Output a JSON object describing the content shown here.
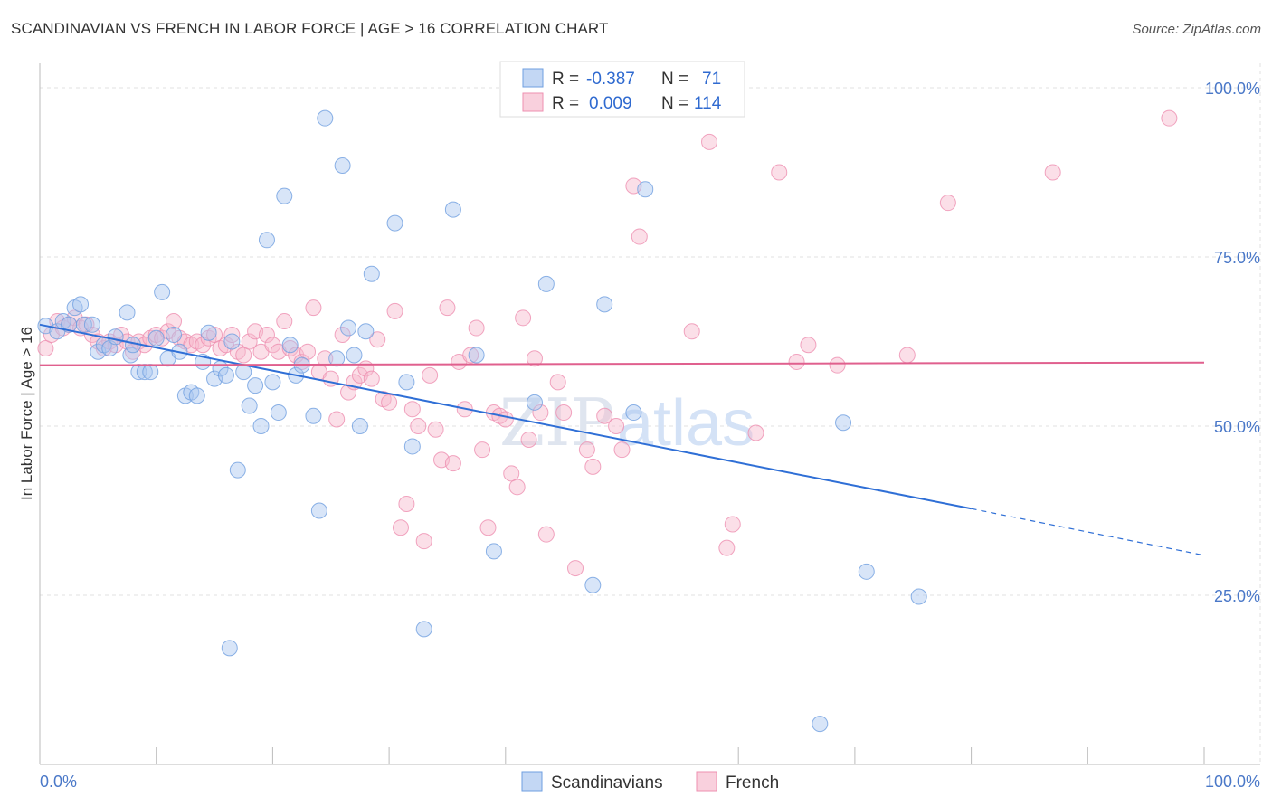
{
  "header": {
    "title": "SCANDINAVIAN VS FRENCH IN LABOR FORCE | AGE > 16 CORRELATION CHART",
    "source": "Source: ZipAtlas.com"
  },
  "watermark": {
    "left": "ZIP",
    "right": "atlas"
  },
  "legend_box": {
    "rows": [
      {
        "r_label": "R =",
        "r_value": "-0.387",
        "n_label": "N =",
        "n_value": "71",
        "color": "#a9c6f0"
      },
      {
        "r_label": "R =",
        "r_value": "0.009",
        "n_label": "N =",
        "n_value": "114",
        "color": "#f6b8cc"
      }
    ]
  },
  "chart_data": {
    "type": "scatter",
    "title": "SCANDINAVIAN VS FRENCH IN LABOR FORCE | AGE > 16 CORRELATION CHART",
    "xlabel": "",
    "ylabel": "In Labor Force | Age > 16",
    "xlim": [
      0,
      100
    ],
    "ylim": [
      0,
      100
    ],
    "x_tick_labels": [
      "0.0%",
      "100.0%"
    ],
    "y_ticks": [
      25,
      50,
      75,
      100
    ],
    "y_tick_labels": [
      "25.0%",
      "50.0%",
      "75.0%",
      "100.0%"
    ],
    "grid": true,
    "legend_position": "bottom",
    "series": [
      {
        "name": "Scandinavians",
        "color": "#a9c6f0",
        "stroke": "#6f9fe0",
        "line_color": "#2f6fd6",
        "trend": {
          "x_start": 0,
          "y_start": 65.0,
          "x_solid_end": 80,
          "y_solid_end": 37.8,
          "x_end": 100,
          "y_end": 30.9
        },
        "points": [
          [
            0.5,
            64.8
          ],
          [
            1.5,
            64.0
          ],
          [
            2.0,
            65.5
          ],
          [
            2.5,
            65.0
          ],
          [
            3.0,
            67.5
          ],
          [
            3.5,
            68.0
          ],
          [
            3.8,
            65.0
          ],
          [
            4.5,
            65.0
          ],
          [
            5.0,
            61.0
          ],
          [
            5.5,
            62.0
          ],
          [
            6.0,
            61.5
          ],
          [
            6.5,
            63.2
          ],
          [
            7.5,
            66.8
          ],
          [
            7.8,
            60.5
          ],
          [
            8.0,
            62.0
          ],
          [
            8.5,
            58.0
          ],
          [
            9.0,
            58.0
          ],
          [
            9.5,
            58.0
          ],
          [
            10.0,
            63.0
          ],
          [
            10.5,
            69.8
          ],
          [
            11.0,
            60.0
          ],
          [
            11.5,
            63.5
          ],
          [
            12.0,
            61.0
          ],
          [
            12.5,
            54.5
          ],
          [
            13.0,
            55.0
          ],
          [
            13.5,
            54.5
          ],
          [
            14.0,
            59.5
          ],
          [
            14.5,
            63.8
          ],
          [
            15.0,
            57.0
          ],
          [
            15.5,
            58.5
          ],
          [
            16.0,
            57.5
          ],
          [
            16.5,
            62.5
          ],
          [
            16.3,
            17.2
          ],
          [
            17.0,
            43.5
          ],
          [
            17.5,
            58.0
          ],
          [
            18.0,
            53.0
          ],
          [
            18.5,
            56.0
          ],
          [
            19.0,
            50.0
          ],
          [
            19.5,
            77.5
          ],
          [
            20.0,
            56.5
          ],
          [
            20.5,
            52.0
          ],
          [
            21.0,
            84.0
          ],
          [
            21.5,
            62.0
          ],
          [
            22.0,
            57.5
          ],
          [
            22.5,
            59.0
          ],
          [
            23.5,
            51.5
          ],
          [
            24.0,
            37.5
          ],
          [
            24.5,
            95.5
          ],
          [
            25.5,
            60.0
          ],
          [
            26.0,
            88.5
          ],
          [
            26.5,
            64.5
          ],
          [
            27.0,
            60.5
          ],
          [
            27.5,
            50.0
          ],
          [
            28.0,
            64.0
          ],
          [
            28.5,
            72.5
          ],
          [
            30.5,
            80.0
          ],
          [
            31.5,
            56.5
          ],
          [
            32.0,
            47.0
          ],
          [
            33.0,
            20.0
          ],
          [
            35.5,
            82.0
          ],
          [
            37.5,
            60.5
          ],
          [
            39.0,
            31.5
          ],
          [
            42.5,
            53.5
          ],
          [
            43.5,
            71.0
          ],
          [
            47.5,
            26.5
          ],
          [
            48.5,
            68.0
          ],
          [
            51.0,
            52.0
          ],
          [
            52.0,
            85.0
          ],
          [
            69.0,
            50.5
          ],
          [
            71.0,
            28.5
          ],
          [
            75.5,
            24.8
          ],
          [
            67.0,
            6.0
          ]
        ]
      },
      {
        "name": "French",
        "color": "#f6b8cc",
        "stroke": "#ee8fb0",
        "line_color": "#e0608e",
        "trend": {
          "x_start": 0,
          "y_start": 59.0,
          "x_end": 100,
          "y_end": 59.4
        },
        "points": [
          [
            0.5,
            61.5
          ],
          [
            1.0,
            63.5
          ],
          [
            1.5,
            65.5
          ],
          [
            2.0,
            64.5
          ],
          [
            2.5,
            65.0
          ],
          [
            3.0,
            66.0
          ],
          [
            3.5,
            64.5
          ],
          [
            4.0,
            65.0
          ],
          [
            4.5,
            63.5
          ],
          [
            5.0,
            62.5
          ],
          [
            5.5,
            61.5
          ],
          [
            6.0,
            62.5
          ],
          [
            6.5,
            62.0
          ],
          [
            7.0,
            63.5
          ],
          [
            7.5,
            62.5
          ],
          [
            8.0,
            61.0
          ],
          [
            8.5,
            62.5
          ],
          [
            9.0,
            62.0
          ],
          [
            9.5,
            63.0
          ],
          [
            10.0,
            63.5
          ],
          [
            10.5,
            63.0
          ],
          [
            11.0,
            64.0
          ],
          [
            11.5,
            65.5
          ],
          [
            12.0,
            63.0
          ],
          [
            12.5,
            62.5
          ],
          [
            13.0,
            62.0
          ],
          [
            13.5,
            62.5
          ],
          [
            14.0,
            62.0
          ],
          [
            14.5,
            63.0
          ],
          [
            15.0,
            63.5
          ],
          [
            15.5,
            61.5
          ],
          [
            16.0,
            62.0
          ],
          [
            16.5,
            63.5
          ],
          [
            17.0,
            61.0
          ],
          [
            17.5,
            60.5
          ],
          [
            18.0,
            62.5
          ],
          [
            18.5,
            64.0
          ],
          [
            19.0,
            61.0
          ],
          [
            19.5,
            63.5
          ],
          [
            20.0,
            62.0
          ],
          [
            20.5,
            61.0
          ],
          [
            21.0,
            65.5
          ],
          [
            21.5,
            61.5
          ],
          [
            22.0,
            60.5
          ],
          [
            22.5,
            59.5
          ],
          [
            23.0,
            61.0
          ],
          [
            23.5,
            67.5
          ],
          [
            24.0,
            58.0
          ],
          [
            24.5,
            60.0
          ],
          [
            25.0,
            57.0
          ],
          [
            25.5,
            51.0
          ],
          [
            26.0,
            63.5
          ],
          [
            26.5,
            55.0
          ],
          [
            27.0,
            56.5
          ],
          [
            27.5,
            57.5
          ],
          [
            28.0,
            58.5
          ],
          [
            28.5,
            57.0
          ],
          [
            29.0,
            62.8
          ],
          [
            29.5,
            54.0
          ],
          [
            30.0,
            53.5
          ],
          [
            30.5,
            67.0
          ],
          [
            31.0,
            35.0
          ],
          [
            31.5,
            38.5
          ],
          [
            32.0,
            52.5
          ],
          [
            32.5,
            50.0
          ],
          [
            33.0,
            33.0
          ],
          [
            33.5,
            57.5
          ],
          [
            34.0,
            49.5
          ],
          [
            34.5,
            45.0
          ],
          [
            35.0,
            67.5
          ],
          [
            35.5,
            44.5
          ],
          [
            36.0,
            59.5
          ],
          [
            36.5,
            52.5
          ],
          [
            37.0,
            60.5
          ],
          [
            37.5,
            64.5
          ],
          [
            38.0,
            46.5
          ],
          [
            38.5,
            35.0
          ],
          [
            39.0,
            52.0
          ],
          [
            39.5,
            51.5
          ],
          [
            40.0,
            51.0
          ],
          [
            40.5,
            43.0
          ],
          [
            41.0,
            41.0
          ],
          [
            41.5,
            66.0
          ],
          [
            42.0,
            48.0
          ],
          [
            42.5,
            60.0
          ],
          [
            43.0,
            52.0
          ],
          [
            43.5,
            34.0
          ],
          [
            44.5,
            56.5
          ],
          [
            45.0,
            52.0
          ],
          [
            46.0,
            29.0
          ],
          [
            47.0,
            46.5
          ],
          [
            47.5,
            44.0
          ],
          [
            48.5,
            51.5
          ],
          [
            49.5,
            50.0
          ],
          [
            50.0,
            46.5
          ],
          [
            51.0,
            85.5
          ],
          [
            51.5,
            78.0
          ],
          [
            56.0,
            64.0
          ],
          [
            57.5,
            92.0
          ],
          [
            59.0,
            32.0
          ],
          [
            59.5,
            35.5
          ],
          [
            61.5,
            49.0
          ],
          [
            63.5,
            87.5
          ],
          [
            65.0,
            59.5
          ],
          [
            66.0,
            62.0
          ],
          [
            68.5,
            59.0
          ],
          [
            74.5,
            60.5
          ],
          [
            78.0,
            83.0
          ],
          [
            87.0,
            87.5
          ],
          [
            97.0,
            95.5
          ]
        ]
      }
    ]
  }
}
